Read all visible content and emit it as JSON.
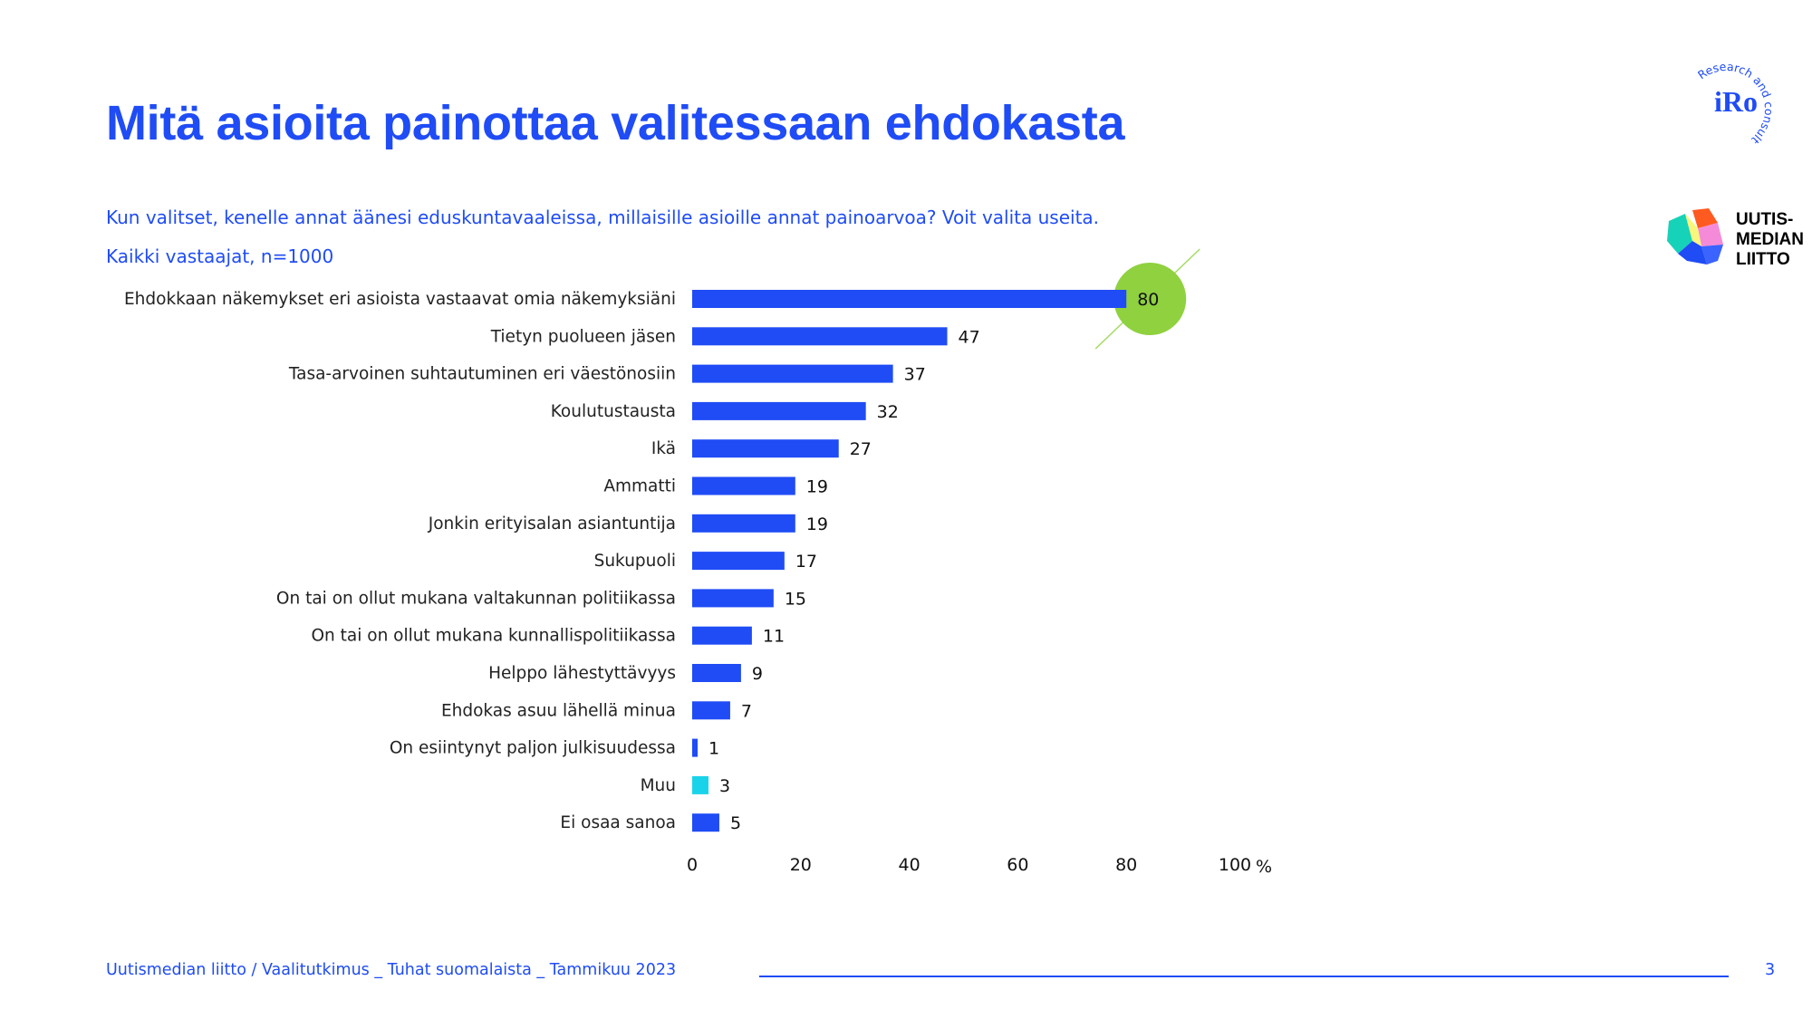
{
  "header": {
    "title": "Mitä asioita painottaa valitessaan ehdokasta",
    "question": "Kun valitset, kenelle annat äänesi eduskuntavaaleissa, millaisille asioille annat painoarvoa? Voit valita useita.",
    "base": "Kaikki vastaajat, n=1000"
  },
  "logos": {
    "iro_text": "iRo",
    "iro_ring": "Research and consulting",
    "um_line1": "UUTIS-",
    "um_line2": "MEDIAN",
    "um_line3": "LIITTO"
  },
  "footer": {
    "source": "Uutismedian liitto / Vaalitutkimus _ Tuhat suomalaista _ Tammikuu 2023",
    "page": "3"
  },
  "colors": {
    "accent": "#1f4cf5",
    "bar": "#1f4cf5",
    "bar_highlight": "#19d3ea",
    "highlight_circle": "#8fd13f"
  },
  "chart_data": {
    "type": "bar",
    "orientation": "horizontal",
    "categories": [
      "Ehdokkaan näkemykset eri asioista vastaavat omia näkemyksiäni",
      "Tietyn puolueen jäsen",
      "Tasa-arvoinen suhtautuminen eri väestönosiin",
      "Koulutustausta",
      "Ikä",
      "Ammatti",
      "Jonkin erityisalan asiantuntija",
      "Sukupuoli",
      "On tai on ollut mukana valtakunnan politiikassa",
      "On tai on ollut mukana kunnallispolitiikassa",
      "Helppo lähestyttävyys",
      "Ehdokas asuu lähellä minua",
      "On esiintynyt paljon julkisuudessa",
      "Muu",
      "Ei osaa sanoa"
    ],
    "values": [
      80,
      47,
      37,
      32,
      27,
      19,
      19,
      17,
      15,
      11,
      9,
      7,
      1,
      3,
      5
    ],
    "highlight_category": "Muu",
    "circled_category": "Ehdokkaan näkemykset eri asioista vastaavat omia näkemyksiäni",
    "xlim": [
      0,
      100
    ],
    "xticks": [
      "0",
      "20",
      "40",
      "60",
      "80",
      "100"
    ],
    "x_unit": "%",
    "grid": false,
    "legend": "none"
  }
}
